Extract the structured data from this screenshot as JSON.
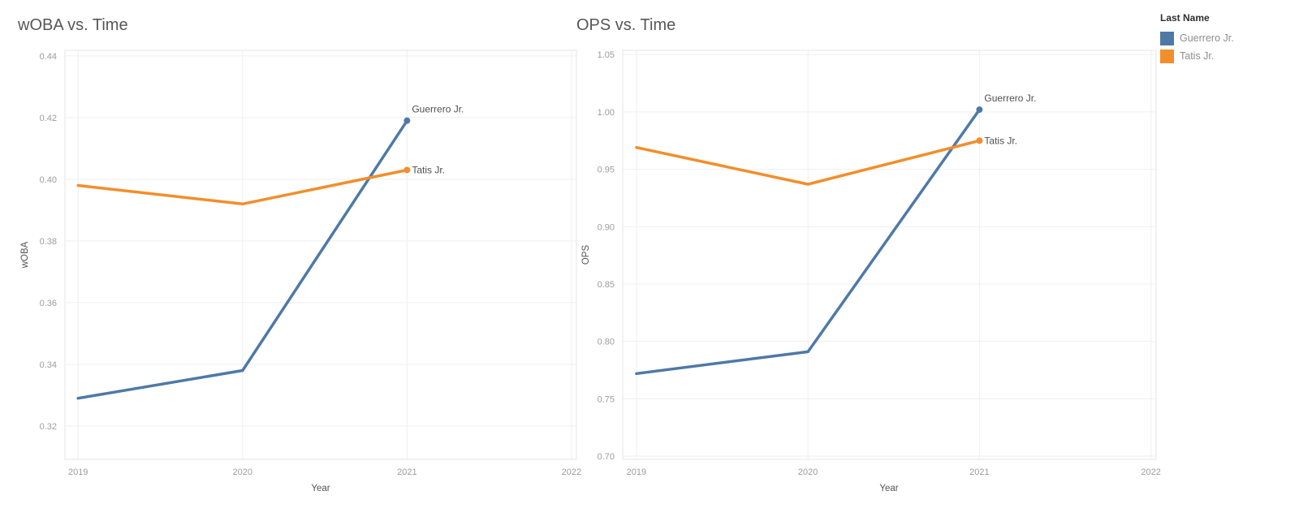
{
  "page": {
    "background": "#ffffff"
  },
  "legend": {
    "title": "Last Name",
    "items": [
      {
        "label": "Guerrero Jr.",
        "color": "#4e79a7"
      },
      {
        "label": "Tatis Jr.",
        "color": "#f28e2b"
      }
    ]
  },
  "chart_data": [
    {
      "type": "line",
      "title": "wOBA vs. Time",
      "xlabel": "Year",
      "ylabel": "wOBA",
      "x": [
        2019,
        2020,
        2021
      ],
      "series": [
        {
          "name": "Guerrero Jr.",
          "color": "#4e79a7",
          "values": [
            0.329,
            0.338,
            0.419
          ]
        },
        {
          "name": "Tatis Jr.",
          "color": "#f28e2b",
          "values": [
            0.398,
            0.392,
            0.403
          ]
        }
      ],
      "xticks": [
        "2019",
        "2020",
        "2021",
        "2022"
      ],
      "yticks": [
        "0.32",
        "0.34",
        "0.36",
        "0.38",
        "0.40",
        "0.42",
        "0.44"
      ],
      "xlim": [
        2018.92,
        2022.03
      ],
      "ylim": [
        0.3092,
        0.4418
      ],
      "grid": true,
      "legend_position": "none",
      "end_labels": true
    },
    {
      "type": "line",
      "title": "OPS vs. Time",
      "xlabel": "Year",
      "ylabel": "OPS",
      "x": [
        2019,
        2020,
        2021
      ],
      "series": [
        {
          "name": "Guerrero Jr.",
          "color": "#4e79a7",
          "values": [
            0.772,
            0.791,
            1.002
          ]
        },
        {
          "name": "Tatis Jr.",
          "color": "#f28e2b",
          "values": [
            0.969,
            0.937,
            0.975
          ]
        }
      ],
      "xticks": [
        "2019",
        "2020",
        "2021",
        "2022"
      ],
      "yticks": [
        "0.70",
        "0.75",
        "0.80",
        "0.85",
        "0.90",
        "0.95",
        "1.00",
        "1.05"
      ],
      "xlim": [
        2018.92,
        2022.03
      ],
      "ylim": [
        0.6972,
        1.0537
      ],
      "grid": true,
      "legend_position": "top-right",
      "end_labels": true
    }
  ],
  "colors": {
    "grid": "#efefef",
    "plot_border": "#e4e4e4",
    "tick_text": "#9c9c9c",
    "axis_title_text": "#555555",
    "chart_title_text": "#575757",
    "end_label_text": "#4f4f4f"
  }
}
